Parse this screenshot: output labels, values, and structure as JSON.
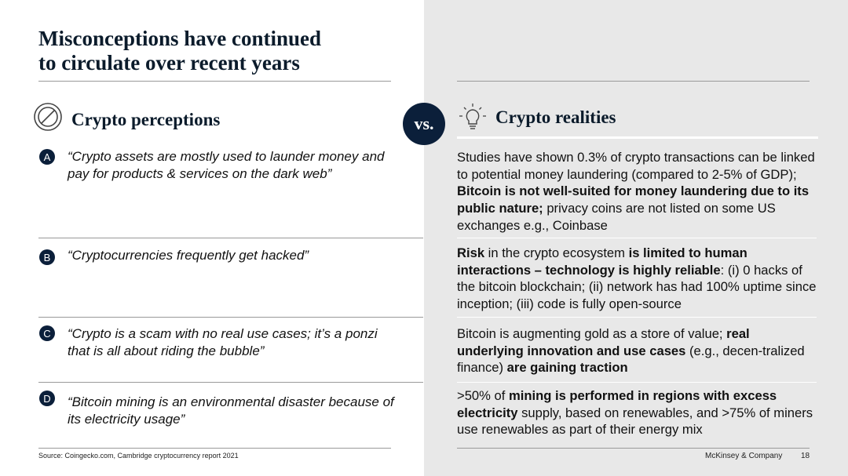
{
  "title": {
    "line1": "Misconceptions have continued",
    "line2": "to circulate over recent years"
  },
  "perceptions_heading": "Crypto perceptions",
  "realities_heading": "Crypto realities",
  "vs_label": "vs.",
  "rows": [
    {
      "badge": "A",
      "perception": "“Crypto assets are mostly used to launder money and pay for products & services on the dark web”",
      "reality_segments": [
        {
          "text": "Studies have shown 0.3% of crypto transactions can be linked to potential money laundering (compared to 2-5% of GDP); ",
          "bold": false
        },
        {
          "text": "Bitcoin is not well-suited for money laundering due to its public nature;",
          "bold": true
        },
        {
          "text": " privacy coins are not listed on some US exchanges e.g., Coinbase",
          "bold": false
        }
      ]
    },
    {
      "badge": "B",
      "perception": "“Cryptocurrencies frequently get hacked”",
      "reality_segments": [
        {
          "text": "Risk",
          "bold": true
        },
        {
          "text": " in the crypto ecosystem ",
          "bold": false
        },
        {
          "text": "is limited to human interactions – technology is highly reliable",
          "bold": true
        },
        {
          "text": ": (i) 0 hacks of the bitcoin blockchain; (ii) network has had 100% uptime since inception; (iii) code is fully open-source",
          "bold": false
        }
      ]
    },
    {
      "badge": "C",
      "perception": "“Crypto is a scam with no real use cases; it’s a ponzi that is all about riding the bubble”",
      "reality_segments": [
        {
          "text": "Bitcoin is augmenting gold as a store of value; ",
          "bold": false
        },
        {
          "text": "real underlying innovation and use cases",
          "bold": true
        },
        {
          "text": " (e.g., decen-tralized finance) ",
          "bold": false
        },
        {
          "text": "are gaining traction",
          "bold": true
        }
      ]
    },
    {
      "badge": "D",
      "perception": "“Bitcoin mining is an environmental disaster because of its electricity usage”",
      "reality_segments": [
        {
          "text": ">50% of ",
          "bold": false
        },
        {
          "text": "mining is performed in regions with excess electricity",
          "bold": true
        },
        {
          "text": " supply, based on renewables, and >75% of miners use renewables as part of their energy mix",
          "bold": false
        }
      ]
    }
  ],
  "footer": {
    "source": "Source: Coingecko.com, Cambridge cryptocurrency report 2021",
    "company": "McKinsey & Company",
    "page": "18"
  }
}
